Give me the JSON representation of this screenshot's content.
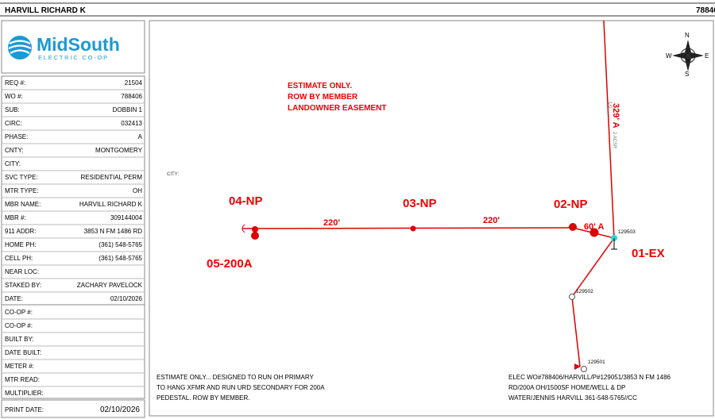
{
  "header": {
    "name": "HARVILL RICHARD K",
    "number": "78840"
  },
  "logo": {
    "brand": "MidSouth",
    "tagline": "ELECTRIC CO-OP"
  },
  "fields": [
    {
      "label": "REQ #:",
      "value": "21504"
    },
    {
      "label": "WO #:",
      "value": "788406"
    },
    {
      "label": "SUB:",
      "value": "DOBBIN 1"
    },
    {
      "label": "CIRC:",
      "value": "032413"
    },
    {
      "label": "PHASE:",
      "value": "A"
    },
    {
      "label": "CNTY:",
      "value": "MONTGOMERY"
    },
    {
      "label": "CITY:"
    },
    {
      "label": "SVC TYPE:",
      "value": "RESIDENTIAL PERM"
    },
    {
      "label": "MTR TYPE:",
      "value": "OH"
    },
    {
      "label": "MBR NAME:",
      "value": "HARVILL RICHARD K"
    },
    {
      "label": "MBR #:",
      "value": "309144004"
    },
    {
      "label": "911 ADDR:",
      "value": "3853 N FM 1486 RD"
    },
    {
      "label": "HOME PH:",
      "value": "(361) 548-5765"
    },
    {
      "label": "CELL PH:",
      "value": "(361) 548-5765"
    },
    {
      "label": "NEAR LOC:"
    },
    {
      "label": "STAKED BY:",
      "value": "ZACHARY PAVELOCK"
    },
    {
      "label": "DATE:",
      "value": "02/10/2026"
    },
    {
      "label": "CO-OP #:"
    },
    {
      "label": "CO-OP #:"
    },
    {
      "label": "BUILT BY:"
    },
    {
      "label": "DATE BUILT:"
    },
    {
      "label": "METER #:"
    },
    {
      "label": "MTR READ:"
    },
    {
      "label": "MULTIPLIER:"
    }
  ],
  "print": {
    "label": "PRINT DATE:",
    "value": "02/10/2026"
  },
  "map": {
    "note": [
      "ESTIMATE ONLY.",
      "ROW BY MEMBER",
      "LANDOWNER EASEMENT"
    ],
    "city": "CITY:",
    "labels": [
      "04-NP",
      "03-NP",
      "02-NP",
      "01-EX",
      "05-200A"
    ],
    "spans": [
      "220'",
      "220'",
      "60' A",
      "329' A"
    ],
    "wire": [
      "1/0",
      "2 ACSR"
    ],
    "poles": [
      "129503",
      "129502",
      "129501"
    ],
    "compass": [
      "N",
      "E",
      "S",
      "W"
    ],
    "bottom_left": [
      "ESTIMATE ONLY... DESIGNED TO RUN OH PRIMARY",
      "TO HANG XFMR AND RUN URD SECONDARY FOR 200A",
      "PEDESTAL. ROW BY MEMBER."
    ],
    "bottom_right": [
      "ELEC WO#788406/HARVILL/P#129051/3853 N FM 1486",
      "RD/200A OH/1500SF    HOME/WELL & DP",
      "WATER/JENNIS HARVILL 361-548-5765//CC"
    ]
  }
}
